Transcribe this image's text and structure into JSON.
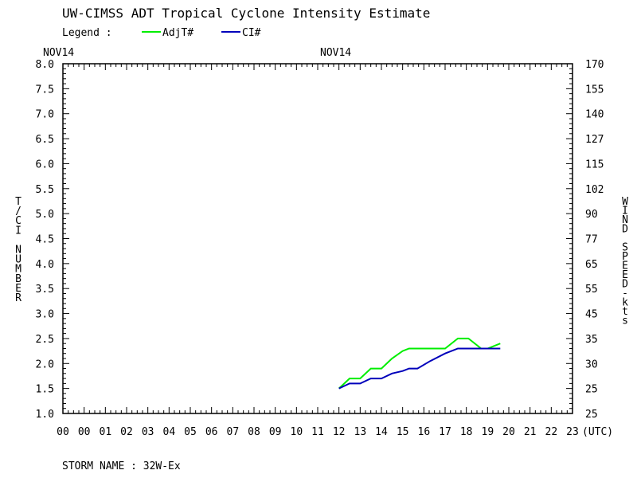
{
  "header": {
    "title": "UW-CIMSS ADT Tropical Cyclone Intensity Estimate",
    "legend_label": "Legend :",
    "legend_items": [
      {
        "label": "AdjT#",
        "color": "#00ee00"
      },
      {
        "label": "CI#",
        "color": "#0000bb"
      }
    ]
  },
  "footer": {
    "storm_name": "STORM NAME : 32W-Ex"
  },
  "chart_data": {
    "type": "line",
    "title": "UW-CIMSS ADT Tropical Cyclone Intensity Estimate",
    "date_labels": [
      "NOV14",
      "NOV14"
    ],
    "x_ticks": [
      "00",
      "00",
      "01",
      "02",
      "03",
      "04",
      "05",
      "06",
      "07",
      "08",
      "09",
      "10",
      "11",
      "12",
      "13",
      "14",
      "15",
      "16",
      "17",
      "18",
      "19",
      "20",
      "21",
      "22",
      "23"
    ],
    "x_unit": "(UTC)",
    "ylabel": "T/CI NUMBER",
    "ylabel_right": "WIND SPEED-kts",
    "ylim": [
      1.0,
      8.0
    ],
    "y_ticks": [
      "1.0",
      "1.5",
      "2.0",
      "2.5",
      "3.0",
      "3.5",
      "4.0",
      "4.5",
      "5.0",
      "5.5",
      "6.0",
      "6.5",
      "7.0",
      "7.5",
      "8.0"
    ],
    "y_right_ticks": [
      "25",
      "25",
      "30",
      "35",
      "45",
      "55",
      "65",
      "77",
      "90",
      "102",
      "115",
      "127",
      "140",
      "155",
      "170"
    ],
    "grid": false,
    "legend_position": "top-left",
    "series": [
      {
        "name": "AdjT#",
        "color": "#00ee00",
        "points": [
          [
            13.0,
            1.5
          ],
          [
            13.5,
            1.7
          ],
          [
            14.0,
            1.7
          ],
          [
            14.5,
            1.9
          ],
          [
            15.0,
            1.9
          ],
          [
            15.5,
            2.1
          ],
          [
            16.0,
            2.25
          ],
          [
            16.3,
            2.3
          ],
          [
            17.0,
            2.3
          ],
          [
            18.0,
            2.3
          ],
          [
            18.6,
            2.5
          ],
          [
            19.1,
            2.5
          ],
          [
            19.7,
            2.3
          ],
          [
            20.0,
            2.3
          ],
          [
            20.6,
            2.4
          ]
        ]
      },
      {
        "name": "CI#",
        "color": "#0000bb",
        "points": [
          [
            13.0,
            1.5
          ],
          [
            13.5,
            1.6
          ],
          [
            14.0,
            1.6
          ],
          [
            14.5,
            1.7
          ],
          [
            15.0,
            1.7
          ],
          [
            15.5,
            1.8
          ],
          [
            16.0,
            1.85
          ],
          [
            16.3,
            1.9
          ],
          [
            16.7,
            1.9
          ],
          [
            17.3,
            2.05
          ],
          [
            18.0,
            2.2
          ],
          [
            18.6,
            2.3
          ],
          [
            19.5,
            2.3
          ],
          [
            20.6,
            2.3
          ]
        ]
      }
    ]
  }
}
